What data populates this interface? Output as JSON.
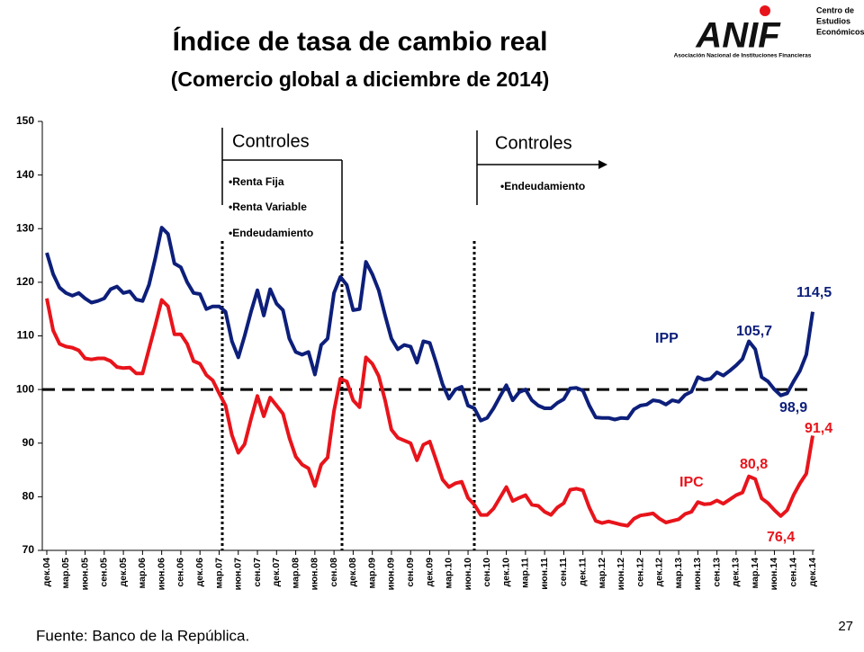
{
  "chart_data": {
    "type": "line",
    "title": "Índice de tasa de cambio real",
    "subtitle": "(Comercio global a diciembre de 2014)",
    "logo": {
      "brand": "ANIF",
      "unit": [
        "Centro de",
        "Estudios",
        "Económicos"
      ],
      "caption": "Asociación Nacional de Instituciones Financieras"
    },
    "source": "Fuente: Banco de la República.",
    "page_number": "27",
    "categories": [
      "дек.04",
      null,
      null,
      "мар.05",
      null,
      null,
      "июн.05",
      null,
      null,
      "сен.05",
      null,
      null,
      "дек.05",
      null,
      null,
      "мар.06",
      null,
      null,
      "июн.06",
      null,
      null,
      "сен.06",
      null,
      null,
      "дек.06",
      null,
      null,
      "мар.07",
      null,
      null,
      "июн.07",
      null,
      null,
      "сен.07",
      null,
      null,
      "дек.07",
      null,
      null,
      "мар.08",
      null,
      null,
      "июн.08",
      null,
      null,
      "сен.08",
      null,
      null,
      "дек.08",
      null,
      null,
      "мар.09",
      null,
      null,
      "июн.09",
      null,
      null,
      "сен.09",
      null,
      null,
      "дек.09",
      null,
      null,
      "мар.10",
      null,
      null,
      "июн.10",
      null,
      null,
      "сен.10",
      null,
      null,
      "дек.10",
      null,
      null,
      "мар.11",
      null,
      null,
      "июн.11",
      null,
      null,
      "сен.11",
      null,
      null,
      "дек.11",
      null,
      null,
      "мар.12",
      null,
      null,
      "июн.12",
      null,
      null,
      "сен.12",
      null,
      null,
      "дек.12",
      null,
      null,
      "мар.13",
      null,
      null,
      "июн.13",
      null,
      null,
      "сен.13",
      null,
      null,
      "дек.13",
      null,
      null,
      "мар.14",
      null,
      null,
      "июн.14",
      null,
      null,
      "сен.14",
      null,
      null,
      "дек.14"
    ],
    "series": [
      {
        "name": "IPP",
        "color": "#0d1f7a",
        "values": [
          125.5,
          121.5,
          119,
          118,
          117.5,
          118,
          117,
          116.2,
          116.5,
          117,
          118.7,
          119.2,
          118,
          118.3,
          116.8,
          116.5,
          119.5,
          124.5,
          130.2,
          129,
          123.5,
          122.8,
          120,
          118,
          117.8,
          115,
          115.5,
          115.5,
          114.5,
          109,
          106,
          110,
          114.5,
          118.5,
          113.8,
          118.7,
          116,
          114.8,
          109.5,
          107,
          106.5,
          107,
          102.8,
          108.3,
          109.5,
          118,
          121,
          119.5,
          114.8,
          115,
          123.8,
          121.5,
          118.5,
          113.8,
          109.5,
          107.5,
          108.3,
          108,
          105,
          109,
          108.7,
          105,
          101,
          98.3,
          100,
          100.5,
          97,
          96.5,
          94.2,
          94.7,
          96.5,
          98.7,
          100.8,
          98,
          99.5,
          100,
          98,
          97,
          96.5,
          96.5,
          97.5,
          98.2,
          100.2,
          100.3,
          99.8,
          97,
          94.8,
          94.7,
          94.7,
          94.4,
          94.7,
          94.6,
          96.3,
          97,
          97.2,
          98,
          97.8,
          97.2,
          98,
          97.7,
          99,
          99.6,
          102.3,
          101.8,
          102,
          103.2,
          102.6,
          103.5,
          104.5,
          105.7,
          109,
          107.5,
          102.3,
          101.5,
          100,
          98.9,
          99.3,
          101.5,
          103.5,
          106.5,
          114.5
        ]
      },
      {
        "name": "IPC",
        "color": "#e8141b",
        "values": [
          117,
          111,
          108.5,
          108,
          107.8,
          107.3,
          105.8,
          105.6,
          105.8,
          105.8,
          105.3,
          104.2,
          104,
          104.1,
          103,
          103,
          107.5,
          112,
          116.7,
          115.5,
          110.3,
          110.3,
          108.5,
          105.3,
          104.8,
          102.7,
          101.7,
          99.3,
          97,
          91.5,
          88.2,
          89.8,
          94.5,
          98.8,
          95,
          98.5,
          97,
          95.5,
          91,
          87.5,
          86,
          85.3,
          82,
          86,
          87.3,
          96,
          102,
          101.5,
          98,
          96.7,
          106,
          104.8,
          102.5,
          98,
          92.5,
          91,
          90.5,
          90,
          86.8,
          89.7,
          90.3,
          86.8,
          83.2,
          81.8,
          82.5,
          82.8,
          79.8,
          78.5,
          76.6,
          76.6,
          77.8,
          79.8,
          81.8,
          79.2,
          79.8,
          80.3,
          78.5,
          78.3,
          77.2,
          76.6,
          78,
          78.8,
          81.3,
          81.5,
          81.2,
          78,
          75.5,
          75.1,
          75.4,
          75.1,
          74.8,
          74.6,
          75.9,
          76.5,
          76.7,
          76.9,
          75.9,
          75.2,
          75.5,
          75.8,
          76.8,
          77.2,
          79,
          78.6,
          78.7,
          79.3,
          78.7,
          79.5,
          80.3,
          80.8,
          83.8,
          83.3,
          79.7,
          78.8,
          77.5,
          76.4,
          77.5,
          80.3,
          82.5,
          84.3,
          91.4
        ]
      }
    ],
    "ylim": [
      70,
      150
    ],
    "yticks": [
      70,
      80,
      90,
      100,
      110,
      120,
      130,
      140,
      150
    ],
    "reference_line": 100,
    "annotations": [
      {
        "text": "114,5",
        "color": "#0d1f7a"
      },
      {
        "text": "105,7",
        "color": "#0d1f7a"
      },
      {
        "text": "98,9",
        "color": "#0d1f7a"
      },
      {
        "text": "91,4",
        "color": "#e8141b"
      },
      {
        "text": "80,8",
        "color": "#e8141b"
      },
      {
        "text": "76,4",
        "color": "#e8141b"
      }
    ],
    "controls": [
      {
        "title": "Controles",
        "items": [
          "•Renta Fija",
          "•Renta Variable",
          "•Endeudamiento"
        ]
      },
      {
        "title": "Controles",
        "items": [
          "•Endeudamiento"
        ]
      }
    ]
  }
}
